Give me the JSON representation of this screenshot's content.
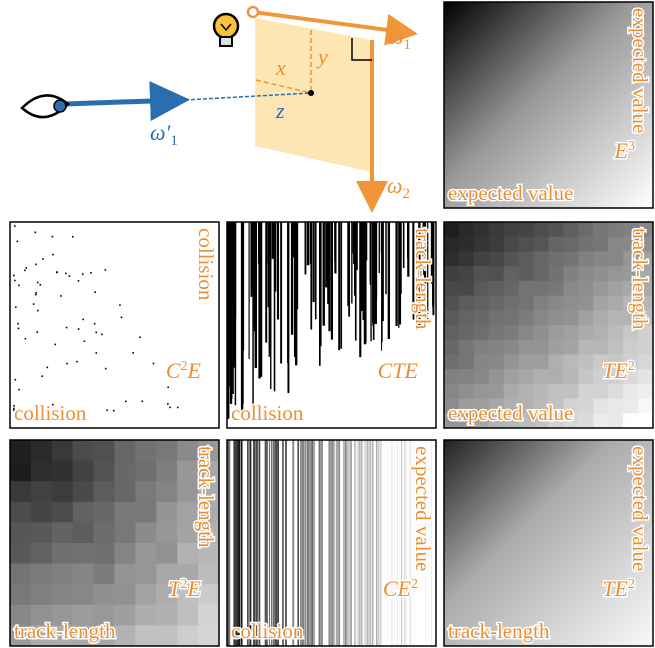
{
  "diagram": {
    "x": "x",
    "y": "y",
    "z": "z",
    "omega1": {
      "symbol": "ω",
      "sub": "1"
    },
    "omega2": {
      "symbol": "ω",
      "sub": "2"
    },
    "omega1_prime": {
      "symbol": "ω′",
      "sub": "1"
    }
  },
  "panels": [
    {
      "estimator": {
        "base": "E",
        "sup": "3"
      },
      "side_label": "expected value",
      "bottom_label": "expected value"
    },
    {
      "estimator": {
        "base": "C",
        "sup": "2",
        "tail": "E"
      },
      "side_label": "collision",
      "bottom_label": "collision"
    },
    {
      "estimator": {
        "base": "CTE"
      },
      "side_label": "track-length",
      "bottom_label": "collision"
    },
    {
      "estimator": {
        "base": "TE",
        "sup": "2"
      },
      "side_label": "track-length",
      "bottom_label": "expected value"
    },
    {
      "estimator": {
        "base": "T",
        "sup": "2",
        "tail": "E"
      },
      "side_label": "track-length",
      "bottom_label": "track-length"
    },
    {
      "estimator": {
        "base": "CE",
        "sup": "2"
      },
      "side_label": "expected value",
      "bottom_label": "collision"
    },
    {
      "estimator": {
        "base": "TE",
        "sup": "2"
      },
      "side_label": "expected value",
      "bottom_label": "track-length"
    }
  ]
}
